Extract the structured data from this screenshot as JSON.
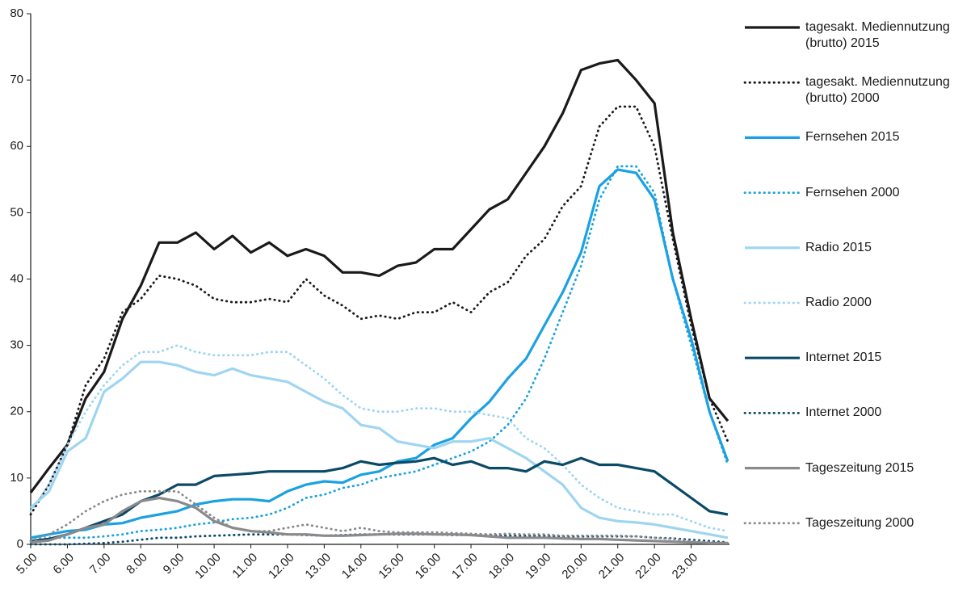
{
  "chart_data": {
    "type": "line",
    "x": [
      5,
      5.5,
      6,
      6.5,
      7,
      7.5,
      8,
      8.5,
      9,
      9.5,
      10,
      10.5,
      11,
      11.5,
      12,
      12.5,
      13,
      13.5,
      14,
      14.5,
      15,
      15.5,
      16,
      16.5,
      17,
      17.5,
      18,
      18.5,
      19,
      19.5,
      20,
      20.5,
      21,
      21.5,
      22,
      22.5,
      23,
      23.5,
      24
    ],
    "xlim": [
      5,
      24
    ],
    "xticks": [
      {
        "value": 5,
        "label": "5.00"
      },
      {
        "value": 6,
        "label": "6.00"
      },
      {
        "value": 7,
        "label": "7.00"
      },
      {
        "value": 8,
        "label": "8.00"
      },
      {
        "value": 9,
        "label": "9.00"
      },
      {
        "value": 10,
        "label": "10.00"
      },
      {
        "value": 11,
        "label": "11.00"
      },
      {
        "value": 12,
        "label": "12.00"
      },
      {
        "value": 13,
        "label": "13.00"
      },
      {
        "value": 14,
        "label": "14.00"
      },
      {
        "value": 15,
        "label": "15.00"
      },
      {
        "value": 16,
        "label": "16.00"
      },
      {
        "value": 17,
        "label": "17.00"
      },
      {
        "value": 18,
        "label": "18.00"
      },
      {
        "value": 19,
        "label": "19.00"
      },
      {
        "value": 20,
        "label": "20.00"
      },
      {
        "value": 21,
        "label": "21.00"
      },
      {
        "value": 22,
        "label": "22.00"
      },
      {
        "value": 23,
        "label": "23.00"
      }
    ],
    "ylim": [
      0,
      80
    ],
    "yticks": [
      0,
      10,
      20,
      30,
      40,
      50,
      60,
      70,
      80
    ],
    "grid": false,
    "legend_position": "right",
    "series": [
      {
        "name": "tagesakt. Mediennutzung (brutto) 2015",
        "color": "#1a1a1a",
        "line_style": "solid",
        "values": [
          7.8,
          11.5,
          15,
          22,
          26,
          34,
          39,
          45.5,
          45.5,
          47,
          44.5,
          46.5,
          44,
          45.5,
          43.5,
          44.5,
          43.5,
          41,
          41,
          40.5,
          42,
          42.5,
          44.5,
          44.5,
          47.5,
          50.5,
          52,
          56,
          60,
          65,
          71.5,
          72.5,
          73,
          70,
          66.5,
          47,
          34,
          22,
          18.6
        ]
      },
      {
        "name": "tagesakt. Mediennutzung (brutto) 2000",
        "color": "#1a1a1a",
        "line_style": "dotted",
        "values": [
          4.5,
          9,
          15,
          24,
          28,
          35,
          37,
          40.5,
          40,
          39,
          37,
          36.5,
          36.5,
          37,
          36.5,
          40,
          37.5,
          36,
          34,
          34.5,
          34,
          35,
          35,
          36.5,
          35,
          38,
          39.5,
          43.5,
          46,
          51,
          54,
          63,
          66,
          66,
          60,
          46,
          33,
          22,
          15.5
        ]
      },
      {
        "name": "Fernsehen 2015",
        "color": "#1ba1e2",
        "line_style": "solid",
        "values": [
          1,
          1.5,
          2,
          2.2,
          3,
          3.2,
          4,
          4.5,
          5,
          6,
          6.5,
          6.8,
          6.8,
          6.5,
          8,
          9,
          9.5,
          9.3,
          10.5,
          11,
          12.5,
          13,
          15,
          16,
          19,
          21.5,
          25,
          28,
          33,
          38,
          44,
          54,
          56.5,
          56,
          52,
          40,
          31,
          20,
          12.5
        ]
      },
      {
        "name": "Fernsehen 2000",
        "color": "#1ba1e2",
        "line_style": "dotted",
        "values": [
          0.5,
          1,
          1,
          1,
          1.2,
          1.5,
          2,
          2.2,
          2.5,
          3,
          3.3,
          3.8,
          4,
          4.5,
          5.5,
          7,
          7.5,
          8.5,
          9,
          10,
          10.5,
          11,
          12,
          13,
          14,
          15.5,
          18,
          22,
          28,
          35,
          42,
          52,
          57,
          57,
          53,
          40,
          30,
          20,
          12
        ]
      },
      {
        "name": "Radio 2015",
        "color": "#9fd5f1",
        "line_style": "solid",
        "values": [
          5.5,
          8,
          14,
          16,
          23,
          25,
          27.5,
          27.5,
          27,
          26,
          25.5,
          26.5,
          25.5,
          25,
          24.5,
          23,
          21.5,
          20.5,
          18,
          17.5,
          15.5,
          15,
          14.5,
          15.5,
          15.5,
          16,
          14.5,
          13,
          11,
          9,
          5.5,
          4,
          3.5,
          3.3,
          3,
          2.5,
          2,
          1.5,
          1
        ]
      },
      {
        "name": "Radio 2000",
        "color": "#9fd5f1",
        "line_style": "dotted",
        "values": [
          5,
          9,
          15,
          20,
          24,
          27,
          29,
          29,
          30,
          29,
          28.5,
          28.5,
          28.5,
          29,
          29,
          27,
          25,
          22.5,
          20.5,
          20,
          20,
          20.5,
          20.5,
          20,
          20,
          19.5,
          19,
          16,
          14.5,
          12,
          9,
          7,
          5.5,
          5,
          4.5,
          4.5,
          3.5,
          2.5,
          2
        ]
      },
      {
        "name": "Internet 2015",
        "color": "#0b4a66",
        "line_style": "solid",
        "values": [
          0.5,
          0.8,
          1.5,
          2.5,
          3.5,
          4.5,
          6.5,
          7.5,
          9,
          9,
          10.3,
          10.5,
          10.7,
          11,
          11,
          11,
          11,
          11.5,
          12.5,
          12,
          12.3,
          12.5,
          13,
          12,
          12.5,
          11.5,
          11.5,
          11,
          12.5,
          12,
          13,
          12,
          12,
          11.5,
          11,
          9,
          7,
          5,
          4.5
        ]
      },
      {
        "name": "Internet 2000",
        "color": "#0b4a66",
        "line_style": "dotted",
        "values": [
          0,
          0,
          0,
          0.1,
          0.2,
          0.4,
          0.7,
          1,
          1,
          1.2,
          1.3,
          1.4,
          1.5,
          1.5,
          1.5,
          1.4,
          1.3,
          1.4,
          1.5,
          1.5,
          1.5,
          1.5,
          1.5,
          1.4,
          1.4,
          1.4,
          1.3,
          1.3,
          1.3,
          1.2,
          1.2,
          1.2,
          1.2,
          1.2,
          1,
          0.9,
          0.7,
          0.5,
          0.3
        ]
      },
      {
        "name": "Tageszeitung 2015",
        "color": "#8a8a8d",
        "line_style": "solid",
        "values": [
          0.3,
          0.6,
          1.5,
          2.5,
          3,
          5,
          6.5,
          7,
          6.5,
          5.5,
          3.5,
          2.5,
          2,
          1.8,
          1.5,
          1.5,
          1.3,
          1.3,
          1.4,
          1.5,
          1.6,
          1.6,
          1.5,
          1.5,
          1.4,
          1.2,
          1,
          1,
          1,
          0.9,
          0.8,
          0.8,
          0.7,
          0.6,
          0.5,
          0.4,
          0.3,
          0.2,
          0.2
        ]
      },
      {
        "name": "Tageszeitung 2000",
        "color": "#8a8a8d",
        "line_style": "dotted",
        "values": [
          0.5,
          1.5,
          3,
          5,
          6.5,
          7.5,
          8,
          8,
          8,
          6,
          4,
          2.5,
          2,
          2,
          2.5,
          3,
          2.5,
          2,
          2.5,
          2,
          1.8,
          1.8,
          1.8,
          1.7,
          1.6,
          1.5,
          1.6,
          1.5,
          1.5,
          1.3,
          1.3,
          1.3,
          1.3,
          1.2,
          1,
          0.8,
          0.5,
          0.3,
          0.2
        ]
      }
    ]
  }
}
